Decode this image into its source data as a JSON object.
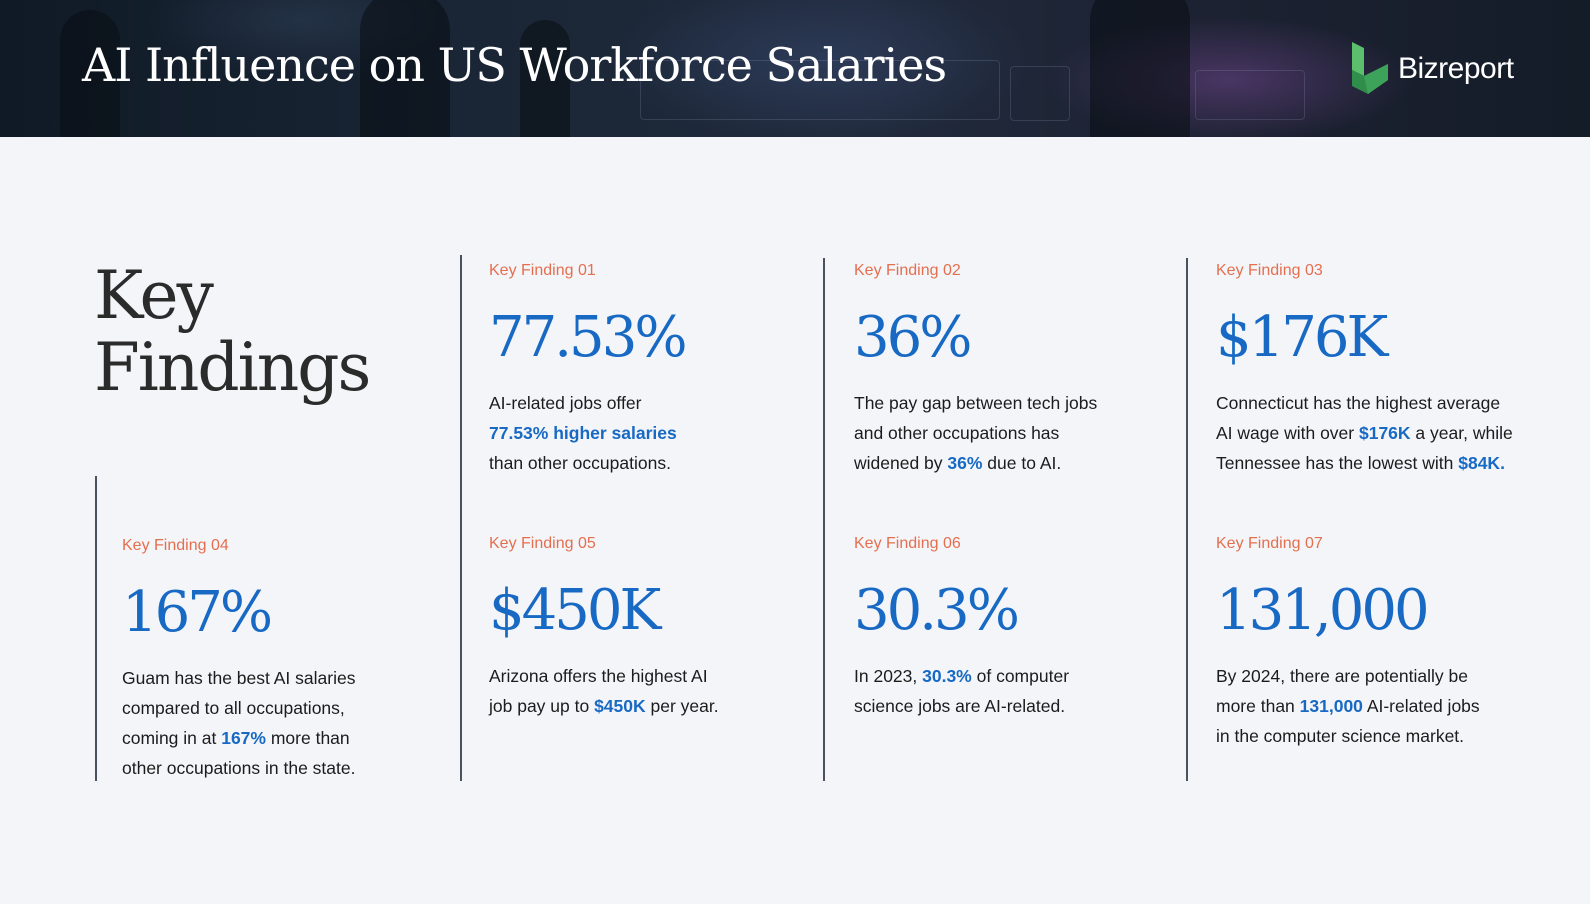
{
  "header": {
    "title": "AI Influence on US Workforce Salaries",
    "logo_text": "Bizreport",
    "logo_icon": "bizreport-logo-icon",
    "logo_color": "#3ea35a"
  },
  "section": {
    "title_line1": "Key",
    "title_line2": "Findings"
  },
  "colors": {
    "label": "#e46f4f",
    "value": "#1769c4",
    "text": "#1c1c1c",
    "background": "#f4f5f9"
  },
  "findings": [
    {
      "label": "Key Finding 01",
      "value": "77.53%",
      "desc": [
        {
          "t": "AI-related jobs offer "
        },
        {
          "br": true
        },
        {
          "t": "77.53% higher salaries",
          "hl": true
        },
        {
          "br": true
        },
        {
          "t": "than other occupations."
        }
      ]
    },
    {
      "label": "Key Finding 02",
      "value": "36%",
      "desc": [
        {
          "t": "The pay gap between tech jobs"
        },
        {
          "br": true
        },
        {
          "t": "and other occupations has"
        },
        {
          "br": true
        },
        {
          "t": "widened by "
        },
        {
          "t": "36%",
          "hl": true
        },
        {
          "t": " due to AI."
        }
      ]
    },
    {
      "label": "Key Finding 03",
      "value": "$176K",
      "desc": [
        {
          "t": "Connecticut has the highest average"
        },
        {
          "br": true
        },
        {
          "t": "AI wage with over "
        },
        {
          "t": "$176K",
          "hl": true
        },
        {
          "t": " a year, while"
        },
        {
          "br": true
        },
        {
          "t": "Tennessee has the lowest with "
        },
        {
          "t": "$84K.",
          "hl": true
        }
      ]
    },
    {
      "label": "Key Finding 04",
      "value": "167%",
      "desc": [
        {
          "t": "Guam has the best AI salaries"
        },
        {
          "br": true
        },
        {
          "t": "compared to all occupations,"
        },
        {
          "br": true
        },
        {
          "t": "coming in at "
        },
        {
          "t": "167%",
          "hl": true
        },
        {
          "t": " more than"
        },
        {
          "br": true
        },
        {
          "t": "other occupations in the state."
        }
      ]
    },
    {
      "label": "Key Finding 05",
      "value": "$450K",
      "desc": [
        {
          "t": "Arizona offers the highest AI"
        },
        {
          "br": true
        },
        {
          "t": "job pay up to "
        },
        {
          "t": "$450K",
          "hl": true
        },
        {
          "t": " per year."
        }
      ]
    },
    {
      "label": "Key Finding 06",
      "value": "30.3%",
      "desc": [
        {
          "t": "In 2023, "
        },
        {
          "t": "30.3%",
          "hl": true
        },
        {
          "t": " of computer"
        },
        {
          "br": true
        },
        {
          "t": "science jobs are AI-related."
        }
      ]
    },
    {
      "label": "Key Finding 07",
      "value": "131,000",
      "desc": [
        {
          "t": "By 2024, there are potentially be"
        },
        {
          "br": true
        },
        {
          "t": "more than "
        },
        {
          "t": "131,000",
          "hl": true
        },
        {
          "t": " AI-related jobs"
        },
        {
          "br": true
        },
        {
          "t": "in the computer science market."
        }
      ]
    }
  ]
}
